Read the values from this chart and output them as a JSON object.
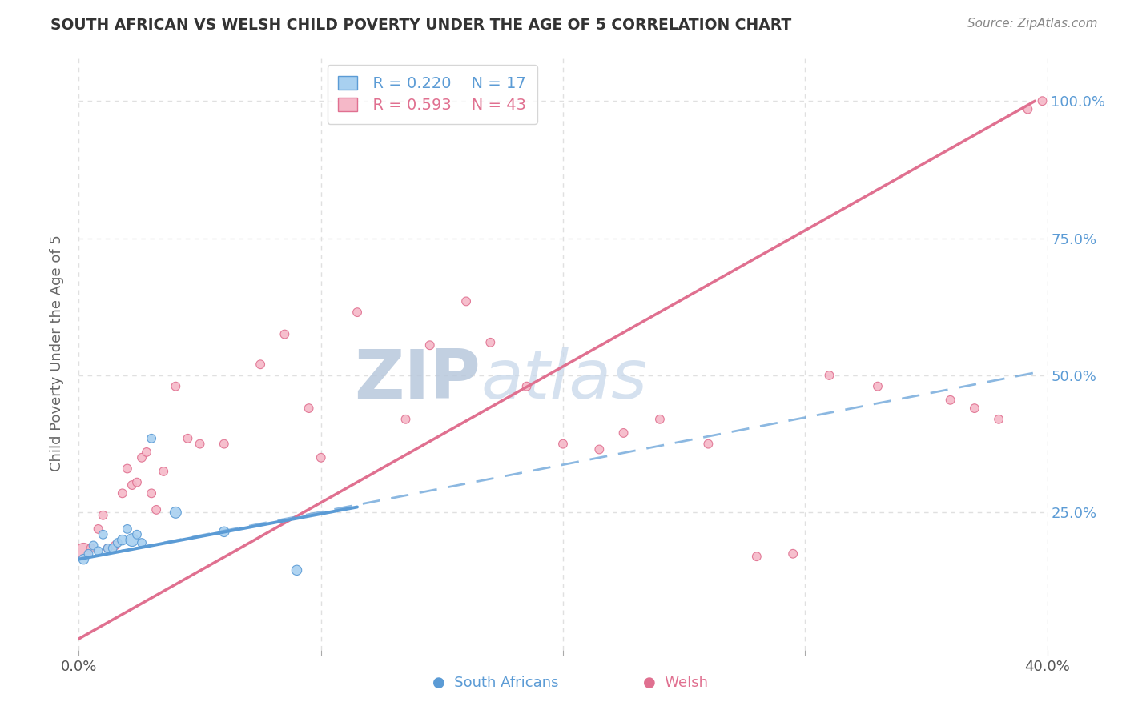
{
  "title": "SOUTH AFRICAN VS WELSH CHILD POVERTY UNDER THE AGE OF 5 CORRELATION CHART",
  "source_text": "Source: ZipAtlas.com",
  "ylabel": "Child Poverty Under the Age of 5",
  "xlim": [
    0.0,
    0.4
  ],
  "ylim": [
    0.0,
    1.08
  ],
  "xticks": [
    0.0,
    0.1,
    0.2,
    0.3,
    0.4
  ],
  "xtick_labels": [
    "0.0%",
    "",
    "",
    "",
    "40.0%"
  ],
  "yticks": [
    0.25,
    0.5,
    0.75,
    1.0
  ],
  "sa_color": "#a8d0f0",
  "sa_edge_color": "#5b9bd5",
  "welsh_color": "#f5b8c8",
  "welsh_edge_color": "#e07090",
  "sa_line_color": "#5b9bd5",
  "welsh_line_color": "#e07090",
  "grid_color": "#e0e0e0",
  "watermark_color": "#ccd8ea",
  "legend_sa_R": "R = 0.220",
  "legend_sa_N": "N = 17",
  "legend_welsh_R": "R = 0.593",
  "legend_welsh_N": "N = 43",
  "sa_x": [
    0.002,
    0.004,
    0.006,
    0.008,
    0.01,
    0.012,
    0.014,
    0.016,
    0.018,
    0.02,
    0.022,
    0.024,
    0.026,
    0.03,
    0.04,
    0.06,
    0.09
  ],
  "sa_y": [
    0.165,
    0.175,
    0.19,
    0.18,
    0.21,
    0.185,
    0.185,
    0.195,
    0.2,
    0.22,
    0.2,
    0.21,
    0.195,
    0.385,
    0.25,
    0.215,
    0.145
  ],
  "sa_sizes": [
    80,
    60,
    60,
    60,
    60,
    60,
    60,
    60,
    80,
    60,
    130,
    60,
    60,
    60,
    100,
    80,
    80
  ],
  "welsh_x": [
    0.002,
    0.005,
    0.008,
    0.01,
    0.012,
    0.015,
    0.018,
    0.02,
    0.022,
    0.024,
    0.026,
    0.028,
    0.03,
    0.032,
    0.035,
    0.04,
    0.045,
    0.05,
    0.06,
    0.075,
    0.085,
    0.095,
    0.1,
    0.115,
    0.135,
    0.145,
    0.16,
    0.17,
    0.185,
    0.2,
    0.215,
    0.225,
    0.24,
    0.26,
    0.28,
    0.295,
    0.31,
    0.33,
    0.36,
    0.37,
    0.38,
    0.392,
    0.398
  ],
  "welsh_y": [
    0.18,
    0.185,
    0.22,
    0.245,
    0.185,
    0.19,
    0.285,
    0.33,
    0.3,
    0.305,
    0.35,
    0.36,
    0.285,
    0.255,
    0.325,
    0.48,
    0.385,
    0.375,
    0.375,
    0.52,
    0.575,
    0.44,
    0.35,
    0.615,
    0.42,
    0.555,
    0.635,
    0.56,
    0.48,
    0.375,
    0.365,
    0.395,
    0.42,
    0.375,
    0.17,
    0.175,
    0.5,
    0.48,
    0.455,
    0.44,
    0.42,
    0.985,
    1.0
  ],
  "welsh_sizes": [
    200,
    60,
    60,
    60,
    60,
    60,
    60,
    60,
    60,
    60,
    60,
    60,
    60,
    60,
    60,
    60,
    60,
    60,
    60,
    60,
    60,
    60,
    60,
    60,
    60,
    60,
    60,
    60,
    60,
    60,
    60,
    60,
    60,
    60,
    60,
    60,
    60,
    60,
    60,
    60,
    60,
    60,
    60
  ],
  "welsh_line_x0": 0.0,
  "welsh_line_y0": 0.02,
  "welsh_line_x1": 0.395,
  "welsh_line_y1": 1.0,
  "sa_line_solid_x0": 0.0,
  "sa_line_solid_y0": 0.165,
  "sa_line_solid_x1": 0.115,
  "sa_line_solid_y1": 0.26,
  "sa_line_dash_x0": 0.0,
  "sa_line_dash_y0": 0.165,
  "sa_line_dash_x1": 0.395,
  "sa_line_dash_y1": 0.505
}
